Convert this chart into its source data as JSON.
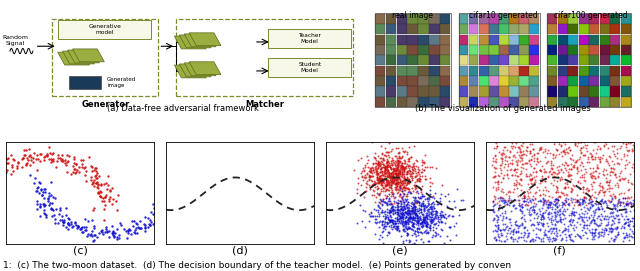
{
  "background_color": "#ffffff",
  "red_color": "#cc1111",
  "blue_color": "#1111cc",
  "dashed_color": "#222222",
  "scatter_size_c": 3,
  "scatter_size_ef": 2,
  "n_moon_points": 500,
  "n_scatter_ef": 800,
  "panel_labels_bottom": [
    "(c)",
    "(d)",
    "(e)",
    "(f)"
  ],
  "caption": "1:  (c) The two-moon dataset.  (d) The decision boundary of the teacher model.  (e) Points generated by conven",
  "label_a": "(a) Data-free adversarial framework",
  "label_b": "(b) The visualization of generated images",
  "text_real": "real image",
  "text_cifar10": "cifar10 generated",
  "text_cifar100": "cifar100 generated"
}
